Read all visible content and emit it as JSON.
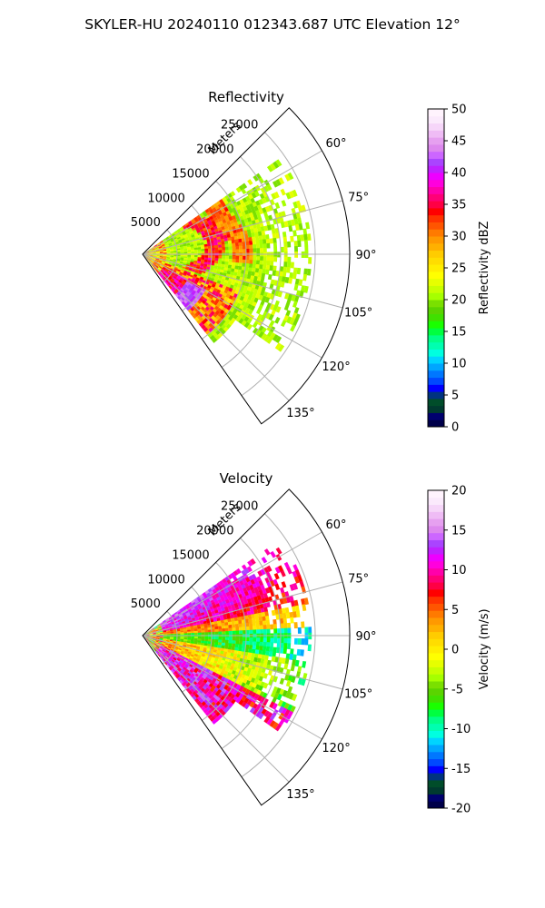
{
  "figure_title": "SKYLER-HU  20240110  012343.687 UTC Elevation 12°",
  "chart_data": [
    {
      "type": "heatmap",
      "projection": "polar-sector",
      "title": "Reflectivity",
      "range_label": "Meters",
      "range_ticks": [
        5000,
        10000,
        15000,
        20000,
        25000
      ],
      "range_max": 30000,
      "azimuth_ticks": [
        "60°",
        "75°",
        "90°",
        "105°",
        "120°",
        "135°"
      ],
      "azimuth_values": [
        60,
        75,
        90,
        105,
        120,
        135
      ],
      "azimuth_range": [
        45,
        145
      ],
      "colorbar": {
        "label": "Reflectivity dBZ",
        "min": 0,
        "max": 50,
        "ticks": [
          0,
          5,
          10,
          15,
          20,
          25,
          30,
          35,
          40,
          45,
          50
        ],
        "colors": [
          "#00004a",
          "#00006e",
          "#003a2f",
          "#004d2a",
          "#003380",
          "#0000ff",
          "#0049ff",
          "#0077ff",
          "#00a6ff",
          "#00d4ff",
          "#00ffe0",
          "#00ffb0",
          "#00ff88",
          "#00ff40",
          "#1aff00",
          "#40e000",
          "#5ad400",
          "#7ae000",
          "#a6ff00",
          "#c8ff00",
          "#e6ff00",
          "#ffff00",
          "#ffee00",
          "#ffdd00",
          "#ffcc00",
          "#ffb000",
          "#ff9900",
          "#ff7a00",
          "#ff5500",
          "#ff3300",
          "#ff0000",
          "#ff0044",
          "#ff0077",
          "#ff00aa",
          "#ff00dd",
          "#ee00ff",
          "#c020ff",
          "#aa44ff",
          "#cc66ff",
          "#dd88ee",
          "#e6a0f0",
          "#efbcf5",
          "#f6d6f9",
          "#fbeafc",
          "#fff3fd"
        ]
      }
    },
    {
      "type": "heatmap",
      "projection": "polar-sector",
      "title": "Velocity",
      "range_label": "Meters",
      "range_ticks": [
        5000,
        10000,
        15000,
        20000,
        25000
      ],
      "range_max": 30000,
      "azimuth_ticks": [
        "60°",
        "75°",
        "90°",
        "105°",
        "120°",
        "135°"
      ],
      "azimuth_values": [
        60,
        75,
        90,
        105,
        120,
        135
      ],
      "azimuth_range": [
        45,
        145
      ],
      "colorbar": {
        "label": "Velocity (m/s)",
        "min": -20,
        "max": 20,
        "ticks": [
          -20,
          -15,
          -10,
          -5,
          0,
          5,
          10,
          15,
          20
        ],
        "colors": [
          "#00004a",
          "#00006e",
          "#003a2f",
          "#004d2a",
          "#003380",
          "#0000ff",
          "#0049ff",
          "#0077ff",
          "#00a6ff",
          "#00d4ff",
          "#00ffe0",
          "#00ffb0",
          "#00ff88",
          "#00ff40",
          "#1aff00",
          "#40e000",
          "#5ad400",
          "#7ae000",
          "#a6ff00",
          "#c8ff00",
          "#e6ff00",
          "#ffff00",
          "#ffee00",
          "#ffdd00",
          "#ffcc00",
          "#ffb000",
          "#ff9900",
          "#ff7a00",
          "#ff5500",
          "#ff3300",
          "#ff0000",
          "#ff0044",
          "#ff0077",
          "#ff00aa",
          "#ff00dd",
          "#ee00ff",
          "#c020ff",
          "#aa44ff",
          "#cc66ff",
          "#dd88ee",
          "#e6a0f0",
          "#efbcf5",
          "#f6d6f9",
          "#fbeafc",
          "#fff3fd"
        ]
      }
    }
  ]
}
